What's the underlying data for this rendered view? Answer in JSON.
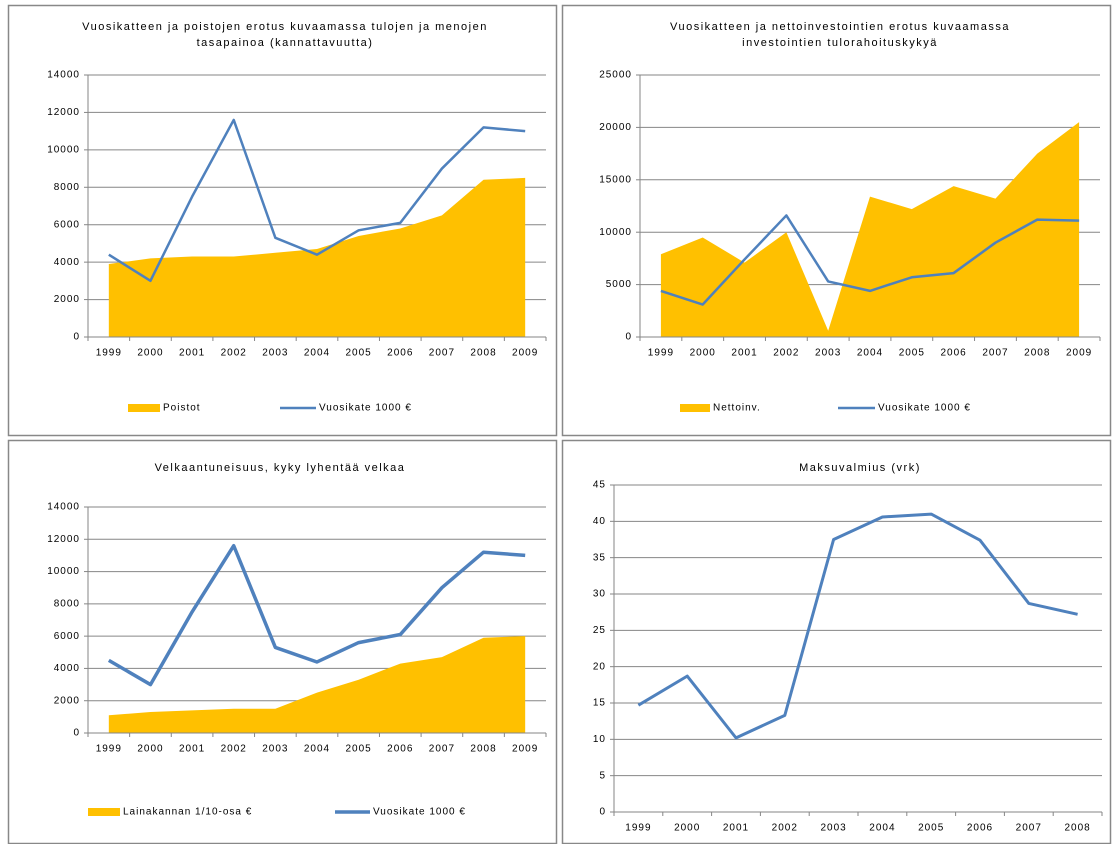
{
  "chart_data": [
    {
      "type": "combo",
      "title": "Vuosikatteen ja poistojen erotus kuvaamassa tulojen ja menojen tasapainoa (kannattavuutta)",
      "categories": [
        "1999",
        "2000",
        "2001",
        "2002",
        "2003",
        "2004",
        "2005",
        "2006",
        "2007",
        "2008",
        "2009"
      ],
      "series": [
        {
          "name": "Poistot",
          "type": "area",
          "color": "#ffc000",
          "values": [
            3900,
            4200,
            4300,
            4300,
            4500,
            4700,
            5400,
            5800,
            6500,
            8400,
            8500
          ]
        },
        {
          "name": "Vuosikate 1000 €",
          "type": "line",
          "color": "#4f81bd",
          "values": [
            4400,
            3000,
            7500,
            11600,
            5300,
            4400,
            5700,
            6100,
            9000,
            11200,
            11000
          ]
        }
      ],
      "ylim": [
        0,
        14000
      ],
      "yticks": [
        0,
        2000,
        4000,
        6000,
        8000,
        10000,
        12000,
        14000
      ],
      "grid": true,
      "legend": "bottom"
    },
    {
      "type": "combo",
      "title": "Vuosikatteen ja nettoinvestointien erotus kuvaamassa investointien tulorahoituskykyä",
      "categories": [
        "1999",
        "2000",
        "2001",
        "2002",
        "2003",
        "2004",
        "2005",
        "2006",
        "2007",
        "2008",
        "2009"
      ],
      "series": [
        {
          "name": "Nettoinv.",
          "type": "area",
          "color": "#ffc000",
          "values": [
            7900,
            9500,
            7100,
            10000,
            600,
            13400,
            12200,
            14400,
            13200,
            17500,
            20500
          ]
        },
        {
          "name": "Vuosikate 1000 €",
          "type": "line",
          "color": "#4f81bd",
          "values": [
            4400,
            3100,
            7400,
            11600,
            5300,
            4400,
            5700,
            6100,
            9000,
            11200,
            11100
          ]
        }
      ],
      "ylim": [
        0,
        25000
      ],
      "yticks": [
        0,
        5000,
        10000,
        15000,
        20000,
        25000
      ],
      "grid": true,
      "legend": "bottom"
    },
    {
      "type": "combo",
      "title": "Velkaantuneisuus, kyky lyhentää velkaa",
      "categories": [
        "1999",
        "2000",
        "2001",
        "2002",
        "2003",
        "2004",
        "2005",
        "2006",
        "2007",
        "2008",
        "2009"
      ],
      "series": [
        {
          "name": "Lainakannan 1/10-osa €",
          "type": "area",
          "color": "#ffc000",
          "values": [
            1100,
            1300,
            1400,
            1500,
            1500,
            2500,
            3300,
            4300,
            4700,
            5900,
            6000
          ]
        },
        {
          "name": "Vuosikate 1000 €",
          "type": "line",
          "color": "#4f81bd",
          "values": [
            4500,
            3000,
            7500,
            11600,
            5300,
            4400,
            5600,
            6100,
            9000,
            11200,
            11000
          ]
        }
      ],
      "ylim": [
        0,
        14000
      ],
      "yticks": [
        0,
        2000,
        4000,
        6000,
        8000,
        10000,
        12000,
        14000
      ],
      "grid": true,
      "legend": "bottom"
    },
    {
      "type": "line",
      "title": "Maksuvalmius (vrk)",
      "categories": [
        "1999",
        "2000",
        "2001",
        "2002",
        "2003",
        "2004",
        "2005",
        "2006",
        "2007",
        "2008"
      ],
      "series": [
        {
          "type": "line",
          "color": "#4f81bd",
          "values": [
            14.7,
            18.7,
            10.2,
            13.3,
            37.5,
            40.6,
            41.0,
            37.4,
            28.7,
            27.2
          ]
        }
      ],
      "ylim": [
        0,
        45
      ],
      "yticks": [
        0,
        5,
        10,
        15,
        20,
        25,
        30,
        35,
        40,
        45
      ],
      "grid": true
    }
  ]
}
